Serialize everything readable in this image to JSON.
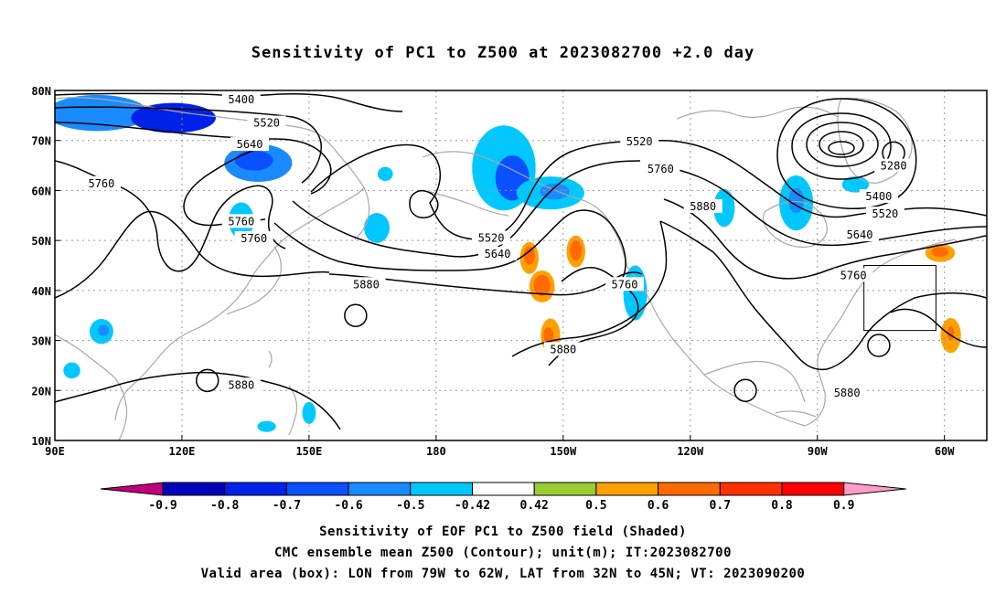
{
  "title": "Sensitivity of PC1 to Z500 at 2023082700 +2.0 day",
  "footer": {
    "line1": "Sensitivity of EOF PC1 to Z500 field (Shaded)",
    "line2": "CMC ensemble mean Z500 (Contour); unit(m); IT:2023082700",
    "line3": "Valid area (box): LON from 79W to 62W, LAT from 32N to 45N; VT: 2023090200"
  },
  "map": {
    "lon_range": [
      90,
      310
    ],
    "lat_range": [
      10,
      80
    ],
    "lat_ticks": [
      {
        "value": 80,
        "label": "80N"
      },
      {
        "value": 70,
        "label": "70N"
      },
      {
        "value": 60,
        "label": "60N"
      },
      {
        "value": 50,
        "label": "50N"
      },
      {
        "value": 40,
        "label": "40N"
      },
      {
        "value": 30,
        "label": "30N"
      },
      {
        "value": 20,
        "label": "20N"
      },
      {
        "value": 10,
        "label": "10N"
      }
    ],
    "lon_ticks": [
      {
        "value": 90,
        "label": "90E"
      },
      {
        "value": 120,
        "label": "120E"
      },
      {
        "value": 150,
        "label": "150E"
      },
      {
        "value": 180,
        "label": "180"
      },
      {
        "value": 210,
        "label": "150W"
      },
      {
        "value": 240,
        "label": "120W"
      },
      {
        "value": 270,
        "label": "90W"
      },
      {
        "value": 300,
        "label": "60W"
      }
    ],
    "valid_box": {
      "lon": [
        281,
        298
      ],
      "lat": [
        32,
        45
      ]
    },
    "contour_labels": [
      {
        "text": "5400",
        "lon": 134,
        "lat": 78.2
      },
      {
        "text": "5520",
        "lon": 140,
        "lat": 73.5
      },
      {
        "text": "5640",
        "lon": 136,
        "lat": 69.2
      },
      {
        "text": "5760",
        "lon": 101,
        "lat": 61.4
      },
      {
        "text": "5760",
        "lon": 134,
        "lat": 53.8
      },
      {
        "text": "5760",
        "lon": 137,
        "lat": 50.4
      },
      {
        "text": "5880",
        "lon": 163.5,
        "lat": 41.2
      },
      {
        "text": "5880",
        "lon": 134,
        "lat": 21.1
      },
      {
        "text": "5520",
        "lon": 193,
        "lat": 50.5
      },
      {
        "text": "5640",
        "lon": 194.5,
        "lat": 47.3
      },
      {
        "text": "5520",
        "lon": 228,
        "lat": 69.8
      },
      {
        "text": "5760",
        "lon": 233,
        "lat": 64.3
      },
      {
        "text": "5880",
        "lon": 243,
        "lat": 56.8
      },
      {
        "text": "5760",
        "lon": 224.5,
        "lat": 41.2
      },
      {
        "text": "5880",
        "lon": 210,
        "lat": 28.2
      },
      {
        "text": "5280",
        "lon": 288,
        "lat": 64.9
      },
      {
        "text": "5400",
        "lon": 284.5,
        "lat": 58.8
      },
      {
        "text": "5520",
        "lon": 286,
        "lat": 55.3
      },
      {
        "text": "5640",
        "lon": 280,
        "lat": 51.1
      },
      {
        "text": "5760",
        "lon": 278.5,
        "lat": 43.0
      },
      {
        "text": "5880",
        "lon": 277,
        "lat": 19.5
      }
    ],
    "sensitivity_areas": [
      {
        "value": -0.6,
        "lon": 100,
        "lat": 75.5,
        "rx": 12,
        "ry": 3.6
      },
      {
        "value": -0.8,
        "lon": 118,
        "lat": 74.5,
        "rx": 10,
        "ry": 3
      },
      {
        "value": -0.6,
        "lon": 138,
        "lat": 65.5,
        "rx": 8,
        "ry": 3.8
      },
      {
        "value": -0.7,
        "lon": 137,
        "lat": 66,
        "rx": 4.5,
        "ry": 2
      },
      {
        "value": -0.5,
        "lon": 134,
        "lat": 54,
        "rx": 3,
        "ry": 3.6
      },
      {
        "value": -0.5,
        "lon": 166,
        "lat": 52.5,
        "rx": 3,
        "ry": 3
      },
      {
        "value": -0.5,
        "lon": 168,
        "lat": 63.3,
        "rx": 1.8,
        "ry": 1.4
      },
      {
        "value": -0.5,
        "lon": 196,
        "lat": 64.5,
        "rx": 7.5,
        "ry": 8.5
      },
      {
        "value": -0.7,
        "lon": 198,
        "lat": 62.5,
        "rx": 4,
        "ry": 4.5
      },
      {
        "value": -0.5,
        "lon": 207,
        "lat": 59.5,
        "rx": 8,
        "ry": 3.3
      },
      {
        "value": -0.6,
        "lon": 208,
        "lat": 59.8,
        "rx": 3.5,
        "ry": 1.6
      },
      {
        "value": -0.5,
        "lon": 227,
        "lat": 39.5,
        "rx": 2.8,
        "ry": 5.5
      },
      {
        "value": -0.5,
        "lon": 248,
        "lat": 56.5,
        "rx": 2.5,
        "ry": 3.8
      },
      {
        "value": -0.5,
        "lon": 265,
        "lat": 57.5,
        "rx": 4,
        "ry": 5.5
      },
      {
        "value": -0.6,
        "lon": 265,
        "lat": 58,
        "rx": 1.8,
        "ry": 2.5
      },
      {
        "value": -0.5,
        "lon": 279,
        "lat": 61.2,
        "rx": 3.2,
        "ry": 1.6
      },
      {
        "value": -0.5,
        "lon": 101,
        "lat": 31.8,
        "rx": 2.8,
        "ry": 2.5
      },
      {
        "value": -0.6,
        "lon": 101.5,
        "lat": 32,
        "rx": 1.3,
        "ry": 1.1
      },
      {
        "value": -0.5,
        "lon": 94,
        "lat": 24,
        "rx": 2,
        "ry": 1.6
      },
      {
        "value": -0.5,
        "lon": 140,
        "lat": 12.8,
        "rx": 2.2,
        "ry": 1.1
      },
      {
        "value": -0.5,
        "lon": 150,
        "lat": 15.5,
        "rx": 1.6,
        "ry": 2.2
      },
      {
        "value": 0.5,
        "lon": 202,
        "lat": 46.5,
        "rx": 2.2,
        "ry": 3.2
      },
      {
        "value": 0.6,
        "lon": 202,
        "lat": 47,
        "rx": 1.3,
        "ry": 1.8
      },
      {
        "value": 0.5,
        "lon": 205,
        "lat": 40.8,
        "rx": 3,
        "ry": 3.2
      },
      {
        "value": 0.6,
        "lon": 205,
        "lat": 41,
        "rx": 2,
        "ry": 2.1
      },
      {
        "value": 0.5,
        "lon": 213,
        "lat": 47.8,
        "rx": 2.2,
        "ry": 3.2
      },
      {
        "value": 0.6,
        "lon": 213,
        "lat": 48,
        "rx": 1.4,
        "ry": 2
      },
      {
        "value": 0.5,
        "lon": 207,
        "lat": 31,
        "rx": 2.3,
        "ry": 3.4
      },
      {
        "value": 0.6,
        "lon": 206.5,
        "lat": 31,
        "rx": 1.2,
        "ry": 1.6
      },
      {
        "value": 0.5,
        "lon": 299,
        "lat": 47.5,
        "rx": 3.5,
        "ry": 1.8
      },
      {
        "value": 0.6,
        "lon": 299,
        "lat": 47.7,
        "rx": 2,
        "ry": 1
      },
      {
        "value": 0.5,
        "lon": 301.5,
        "lat": 31,
        "rx": 2.4,
        "ry": 3.5
      },
      {
        "value": 0.6,
        "lon": 301.5,
        "lat": 31.5,
        "rx": 0.8,
        "ry": 1.4
      }
    ],
    "high_centers": [
      {
        "lon": 253,
        "lat": 20
      },
      {
        "lon": 126,
        "lat": 22
      },
      {
        "lon": 161,
        "lat": 35
      },
      {
        "lon": 284.5,
        "lat": 29
      },
      {
        "lon": 288,
        "lat": 67.5
      }
    ]
  },
  "colorbar": {
    "levels": [
      "-0.9",
      "-0.8",
      "-0.7",
      "-0.6",
      "-0.5",
      "-0.42",
      "0.42",
      "0.5",
      "0.6",
      "0.7",
      "0.8",
      "0.9"
    ],
    "colors": {
      "below": "#c0007a",
      "bins": [
        "#0000b8",
        "#0022e8",
        "#0a50ff",
        "#1a8aff",
        "#00c8ff",
        "#ffffff",
        "#98cc30",
        "#ffa000",
        "#ff6a00",
        "#ff3000",
        "#ff0000"
      ],
      "above": "#ff9cc8"
    }
  },
  "colors": {
    "land_outline": "#a8a8a8",
    "contour": "#000000",
    "grid": "#999999"
  }
}
